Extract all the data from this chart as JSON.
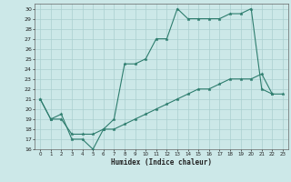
{
  "title": "",
  "xlabel": "Humidex (Indice chaleur)",
  "background_color": "#cce8e8",
  "grid_color": "#aacfcf",
  "line_color": "#2e7d6e",
  "x_min": -0.5,
  "x_max": 23.5,
  "y_min": 16,
  "y_max": 30.5,
  "series": [
    {
      "x": [
        0,
        1,
        2,
        3,
        4,
        5,
        6,
        7,
        8,
        9,
        10,
        11,
        12,
        13,
        14,
        15,
        16,
        17,
        18,
        19,
        20,
        21,
        22
      ],
      "y": [
        21,
        19,
        19.5,
        17,
        17,
        16,
        18,
        19,
        24.5,
        24.5,
        25,
        27,
        27,
        30,
        29,
        29,
        29,
        29,
        29.5,
        29.5,
        30,
        22,
        21.5
      ]
    },
    {
      "x": [
        0,
        1,
        2,
        3,
        4,
        5,
        6,
        7,
        8,
        9,
        10,
        11,
        12,
        13,
        14,
        15,
        16,
        17,
        18,
        19,
        20,
        21,
        22,
        23
      ],
      "y": [
        21,
        19,
        19,
        17.5,
        17.5,
        17.5,
        18,
        18,
        18.5,
        19,
        19.5,
        20,
        20.5,
        21,
        21.5,
        22,
        22,
        22.5,
        23,
        23,
        23,
        23.5,
        21.5,
        21.5
      ]
    }
  ],
  "yticks": [
    16,
    17,
    18,
    19,
    20,
    21,
    22,
    23,
    24,
    25,
    26,
    27,
    28,
    29,
    30
  ],
  "xticks": [
    0,
    1,
    2,
    3,
    4,
    5,
    6,
    7,
    8,
    9,
    10,
    11,
    12,
    13,
    14,
    15,
    16,
    17,
    18,
    19,
    20,
    21,
    22,
    23
  ]
}
